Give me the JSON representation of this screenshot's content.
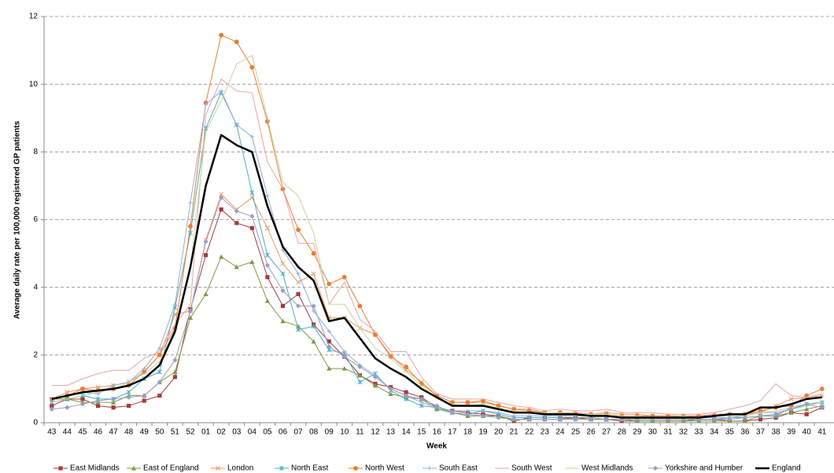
{
  "chart_data": {
    "type": "line",
    "y_label": "Average daily rate per 100,000 registered GP patients",
    "x_label": "Week",
    "categories": [
      "43",
      "44",
      "45",
      "46",
      "47",
      "48",
      "49",
      "50",
      "51",
      "52",
      "01",
      "02",
      "03",
      "04",
      "05",
      "06",
      "07",
      "08",
      "09",
      "10",
      "11",
      "12",
      "13",
      "14",
      "15",
      "16",
      "17",
      "18",
      "19",
      "20",
      "21",
      "22",
      "23",
      "24",
      "25",
      "26",
      "27",
      "28",
      "29",
      "30",
      "31",
      "32",
      "33",
      "34",
      "35",
      "36",
      "37",
      "38",
      "39",
      "40",
      "41"
    ],
    "ylim": [
      0,
      12
    ],
    "yticks": [
      0,
      2,
      4,
      6,
      8,
      10,
      12
    ],
    "grid": true,
    "series": [
      {
        "name": "East Midlands",
        "color": "#a5393b",
        "marker": "square",
        "values": [
          0.5,
          0.7,
          0.7,
          0.5,
          0.45,
          0.5,
          0.65,
          0.8,
          1.35,
          3.35,
          4.95,
          6.3,
          5.9,
          5.75,
          4.3,
          3.45,
          3.8,
          2.9,
          2.4,
          1.95,
          1.4,
          1.15,
          1.05,
          0.9,
          0.75,
          0.45,
          0.35,
          0.3,
          0.25,
          0.2,
          0.05,
          0.15,
          0.15,
          0.15,
          0.15,
          0.1,
          0.1,
          0.05,
          0.05,
          0.05,
          0.05,
          0.05,
          0.1,
          0.1,
          0.05,
          0.05,
          0.1,
          0.15,
          0.3,
          0.25,
          0.45
        ]
      },
      {
        "name": "East of England",
        "color": "#7f9a41",
        "marker": "triangle",
        "values": [
          0.7,
          0.7,
          0.6,
          0.6,
          0.6,
          0.8,
          0.8,
          1.2,
          1.5,
          3.1,
          3.8,
          4.9,
          4.6,
          4.75,
          3.6,
          3.0,
          2.85,
          2.4,
          1.6,
          1.6,
          1.4,
          1.1,
          0.85,
          0.75,
          0.7,
          0.4,
          0.3,
          0.2,
          0.2,
          0.2,
          0.1,
          0.1,
          0.1,
          0.1,
          0.15,
          0.15,
          0.1,
          0.1,
          0.05,
          0.05,
          0.05,
          0.05,
          0.05,
          0.05,
          0.05,
          0.05,
          0.2,
          0.2,
          0.3,
          0.4,
          0.5
        ]
      },
      {
        "name": "London",
        "color": "#e59a62",
        "marker": "x",
        "values": [
          0.7,
          0.9,
          1.0,
          1.05,
          1.1,
          1.2,
          1.5,
          2.0,
          3.2,
          3.3,
          5.4,
          6.75,
          6.3,
          6.65,
          5.75,
          4.7,
          4.15,
          4.4,
          3.1,
          3.1,
          2.8,
          2.6,
          2.0,
          1.55,
          1.2,
          0.8,
          0.6,
          0.6,
          0.6,
          0.5,
          0.4,
          0.4,
          0.3,
          0.3,
          0.3,
          0.25,
          0.3,
          0.25,
          0.25,
          0.2,
          0.2,
          0.2,
          0.2,
          0.25,
          0.25,
          0.25,
          0.3,
          0.5,
          0.7,
          0.75,
          0.8
        ]
      },
      {
        "name": "North East",
        "color": "#4aacc5",
        "marker": "star",
        "values": [
          0.6,
          0.7,
          0.8,
          0.7,
          0.7,
          0.9,
          1.3,
          1.5,
          3.4,
          5.6,
          8.7,
          9.75,
          8.8,
          6.8,
          4.95,
          4.4,
          2.75,
          2.85,
          2.15,
          2.05,
          1.2,
          1.45,
          0.95,
          0.7,
          0.5,
          0.45,
          0.3,
          0.25,
          0.35,
          0.25,
          0.15,
          0.15,
          0.15,
          0.15,
          0.1,
          0.1,
          0.1,
          0.1,
          0.1,
          0.1,
          0.1,
          0.1,
          0.1,
          0.1,
          0.15,
          0.15,
          0.2,
          0.2,
          0.45,
          0.55,
          0.6
        ]
      },
      {
        "name": "North West",
        "color": "#e97d31",
        "marker": "circle",
        "values": [
          0.7,
          0.8,
          1.0,
          0.95,
          1.0,
          1.1,
          1.5,
          2.0,
          2.8,
          5.8,
          9.45,
          11.45,
          11.25,
          10.5,
          8.9,
          6.9,
          5.7,
          5.0,
          4.1,
          4.3,
          3.45,
          2.6,
          1.95,
          1.65,
          1.15,
          0.8,
          0.6,
          0.6,
          0.65,
          0.5,
          0.4,
          0.35,
          0.3,
          0.3,
          0.25,
          0.25,
          0.25,
          0.2,
          0.2,
          0.2,
          0.2,
          0.2,
          0.2,
          0.2,
          0.25,
          0.25,
          0.35,
          0.45,
          0.5,
          0.8,
          1.0
        ]
      },
      {
        "name": "South East",
        "color": "#96abd9",
        "marker": "plus",
        "values": [
          0.7,
          0.8,
          0.9,
          0.85,
          1.1,
          1.2,
          1.6,
          2.2,
          3.5,
          6.5,
          9.4,
          9.8,
          8.8,
          8.45,
          6.7,
          5.1,
          4.4,
          3.3,
          2.7,
          2.1,
          1.7,
          1.4,
          1.0,
          0.8,
          0.6,
          0.45,
          0.35,
          0.35,
          0.35,
          0.3,
          0.2,
          0.2,
          0.2,
          0.2,
          0.2,
          0.2,
          0.2,
          0.15,
          0.15,
          0.15,
          0.15,
          0.15,
          0.15,
          0.15,
          0.15,
          0.2,
          0.3,
          0.3,
          0.4,
          0.5,
          0.6
        ]
      },
      {
        "name": "South West",
        "color": "#e7a3a6",
        "marker": "none",
        "values": [
          1.1,
          1.1,
          1.3,
          1.45,
          1.55,
          1.55,
          1.9,
          2.1,
          2.9,
          3.5,
          9.1,
          10.15,
          9.8,
          9.75,
          7.7,
          6.9,
          5.3,
          5.3,
          3.5,
          4.15,
          3.05,
          2.7,
          2.1,
          2.1,
          1.35,
          0.85,
          0.7,
          0.7,
          0.7,
          0.6,
          0.5,
          0.45,
          0.35,
          0.4,
          0.35,
          0.35,
          0.4,
          0.3,
          0.3,
          0.3,
          0.25,
          0.25,
          0.25,
          0.3,
          0.4,
          0.5,
          0.65,
          1.15,
          0.8,
          0.75,
          0.85
        ]
      },
      {
        "name": "West Midlands",
        "color": "#c4d79b",
        "marker": "none",
        "values": [
          0.6,
          0.7,
          0.8,
          0.9,
          1.0,
          1.2,
          1.45,
          1.8,
          2.6,
          4.6,
          8.6,
          9.5,
          10.6,
          10.85,
          9.0,
          7.1,
          6.7,
          5.6,
          3.5,
          3.5,
          2.8,
          2.2,
          1.9,
          1.5,
          1.1,
          0.7,
          0.55,
          0.5,
          0.55,
          0.45,
          0.35,
          0.3,
          0.3,
          0.3,
          0.25,
          0.25,
          0.25,
          0.2,
          0.2,
          0.15,
          0.15,
          0.2,
          0.15,
          0.2,
          0.2,
          0.2,
          0.3,
          0.35,
          0.45,
          0.5,
          0.6
        ]
      },
      {
        "name": "Yorkshire and Humber",
        "color": "#9a9cc2",
        "marker": "diamond",
        "values": [
          0.4,
          0.45,
          0.55,
          0.65,
          0.7,
          0.75,
          0.8,
          1.2,
          1.85,
          3.3,
          5.35,
          6.65,
          6.25,
          6.1,
          4.65,
          3.9,
          3.45,
          3.45,
          2.25,
          1.95,
          1.65,
          1.35,
          1.0,
          0.8,
          0.7,
          0.5,
          0.3,
          0.25,
          0.2,
          0.15,
          0.1,
          0.1,
          0.1,
          0.1,
          0.1,
          0.1,
          0.1,
          0.1,
          0.1,
          0.1,
          0.1,
          0.1,
          0.1,
          0.1,
          0.1,
          0.15,
          0.2,
          0.25,
          0.4,
          0.55,
          0.45
        ]
      },
      {
        "name": "England",
        "color": "#000000",
        "marker": "none",
        "width": 2.5,
        "values": [
          0.7,
          0.8,
          0.9,
          0.95,
          1.0,
          1.1,
          1.3,
          1.7,
          2.7,
          4.6,
          7.0,
          8.5,
          8.2,
          8.0,
          6.4,
          5.2,
          4.6,
          4.2,
          3.0,
          3.1,
          2.5,
          1.9,
          1.6,
          1.35,
          1.0,
          0.75,
          0.5,
          0.5,
          0.5,
          0.4,
          0.3,
          0.3,
          0.25,
          0.25,
          0.25,
          0.2,
          0.2,
          0.15,
          0.15,
          0.15,
          0.15,
          0.15,
          0.15,
          0.2,
          0.25,
          0.25,
          0.45,
          0.45,
          0.55,
          0.7,
          0.75
        ]
      }
    ]
  }
}
